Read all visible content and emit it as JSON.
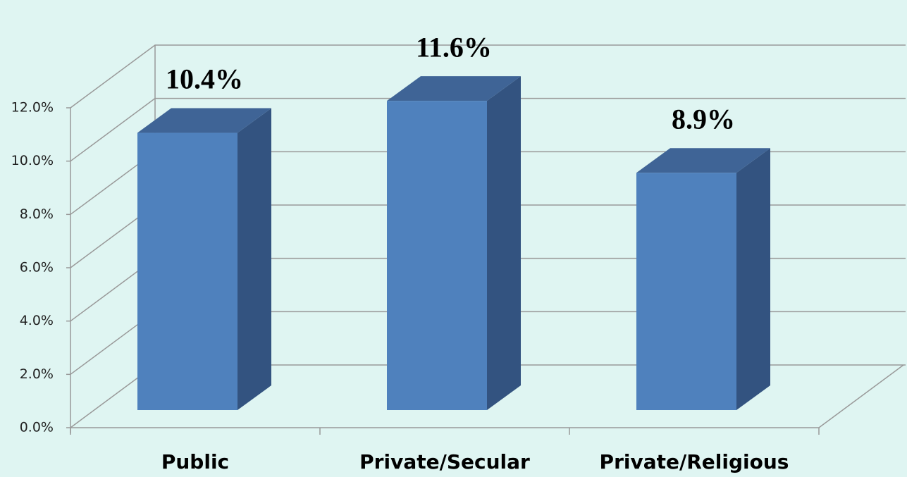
{
  "chart_data": {
    "type": "bar3d",
    "categories": [
      "Public",
      "Private/Secular",
      "Private/Religious"
    ],
    "values": [
      10.4,
      11.6,
      8.9
    ],
    "value_labels": [
      "10.4%",
      "11.6%",
      "8.9%"
    ],
    "color": "#4f81bd",
    "ylim": [
      0,
      12
    ],
    "yticks": [
      {
        "value": 0,
        "label": "0.0%"
      },
      {
        "value": 2,
        "label": "2.0%"
      },
      {
        "value": 4,
        "label": "4.0%"
      },
      {
        "value": 6,
        "label": "6.0%"
      },
      {
        "value": 8,
        "label": "8.0%"
      },
      {
        "value": 10,
        "label": "10.0%"
      },
      {
        "value": 12,
        "label": "12.0%"
      }
    ],
    "grid": true
  }
}
